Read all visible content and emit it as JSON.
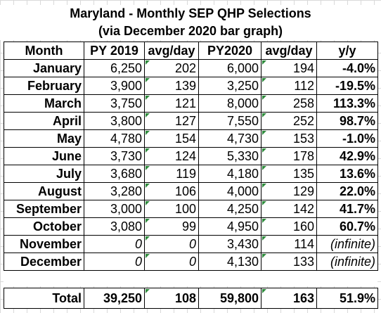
{
  "title_line1": "Maryland - Monthly SEP QHP Selections",
  "title_line2": "(via December 2020 bar graph)",
  "headers": {
    "month": "Month",
    "py2019": "PY 2019",
    "avg_day_2019": "avg/day",
    "py2020": "PY2020",
    "avg_day_2020": "avg/day",
    "yoy": "y/y"
  },
  "rows": [
    {
      "month": "January",
      "py2019": "6,250",
      "avg2019": "202",
      "py2020": "6,000",
      "avg2020": "194",
      "yoy": "-4.0%"
    },
    {
      "month": "February",
      "py2019": "3,900",
      "avg2019": "139",
      "py2020": "3,250",
      "avg2020": "112",
      "yoy": "-19.5%"
    },
    {
      "month": "March",
      "py2019": "3,750",
      "avg2019": "121",
      "py2020": "8,000",
      "avg2020": "258",
      "yoy": "113.3%"
    },
    {
      "month": "April",
      "py2019": "3,800",
      "avg2019": "127",
      "py2020": "7,550",
      "avg2020": "252",
      "yoy": "98.7%"
    },
    {
      "month": "May",
      "py2019": "4,780",
      "avg2019": "154",
      "py2020": "4,730",
      "avg2020": "153",
      "yoy": "-1.0%"
    },
    {
      "month": "June",
      "py2019": "3,730",
      "avg2019": "124",
      "py2020": "5,330",
      "avg2020": "178",
      "yoy": "42.9%"
    },
    {
      "month": "July",
      "py2019": "3,680",
      "avg2019": "119",
      "py2020": "4,180",
      "avg2020": "135",
      "yoy": "13.6%"
    },
    {
      "month": "August",
      "py2019": "3,280",
      "avg2019": "106",
      "py2020": "4,000",
      "avg2020": "129",
      "yoy": "22.0%"
    },
    {
      "month": "September",
      "py2019": "3,000",
      "avg2019": "100",
      "py2020": "4,250",
      "avg2020": "142",
      "yoy": "41.7%"
    },
    {
      "month": "October",
      "py2019": "3,080",
      "avg2019": "99",
      "py2020": "4,950",
      "avg2020": "160",
      "yoy": "60.7%"
    },
    {
      "month": "November",
      "py2019": "0",
      "avg2019": "0",
      "py2020": "3,430",
      "avg2020": "114",
      "yoy": "(infinite)"
    },
    {
      "month": "December",
      "py2019": "0",
      "avg2019": "0",
      "py2020": "4,130",
      "avg2020": "133",
      "yoy": "(infinite)"
    }
  ],
  "total": {
    "label": "Total",
    "py2019": "39,250",
    "avg2019": "108",
    "py2020": "59,800",
    "avg2020": "163",
    "yoy": "51.9%"
  },
  "colors": {
    "grid_line": "#d9d9d9",
    "border": "#000000",
    "error_marker": "#2e8b3c"
  }
}
